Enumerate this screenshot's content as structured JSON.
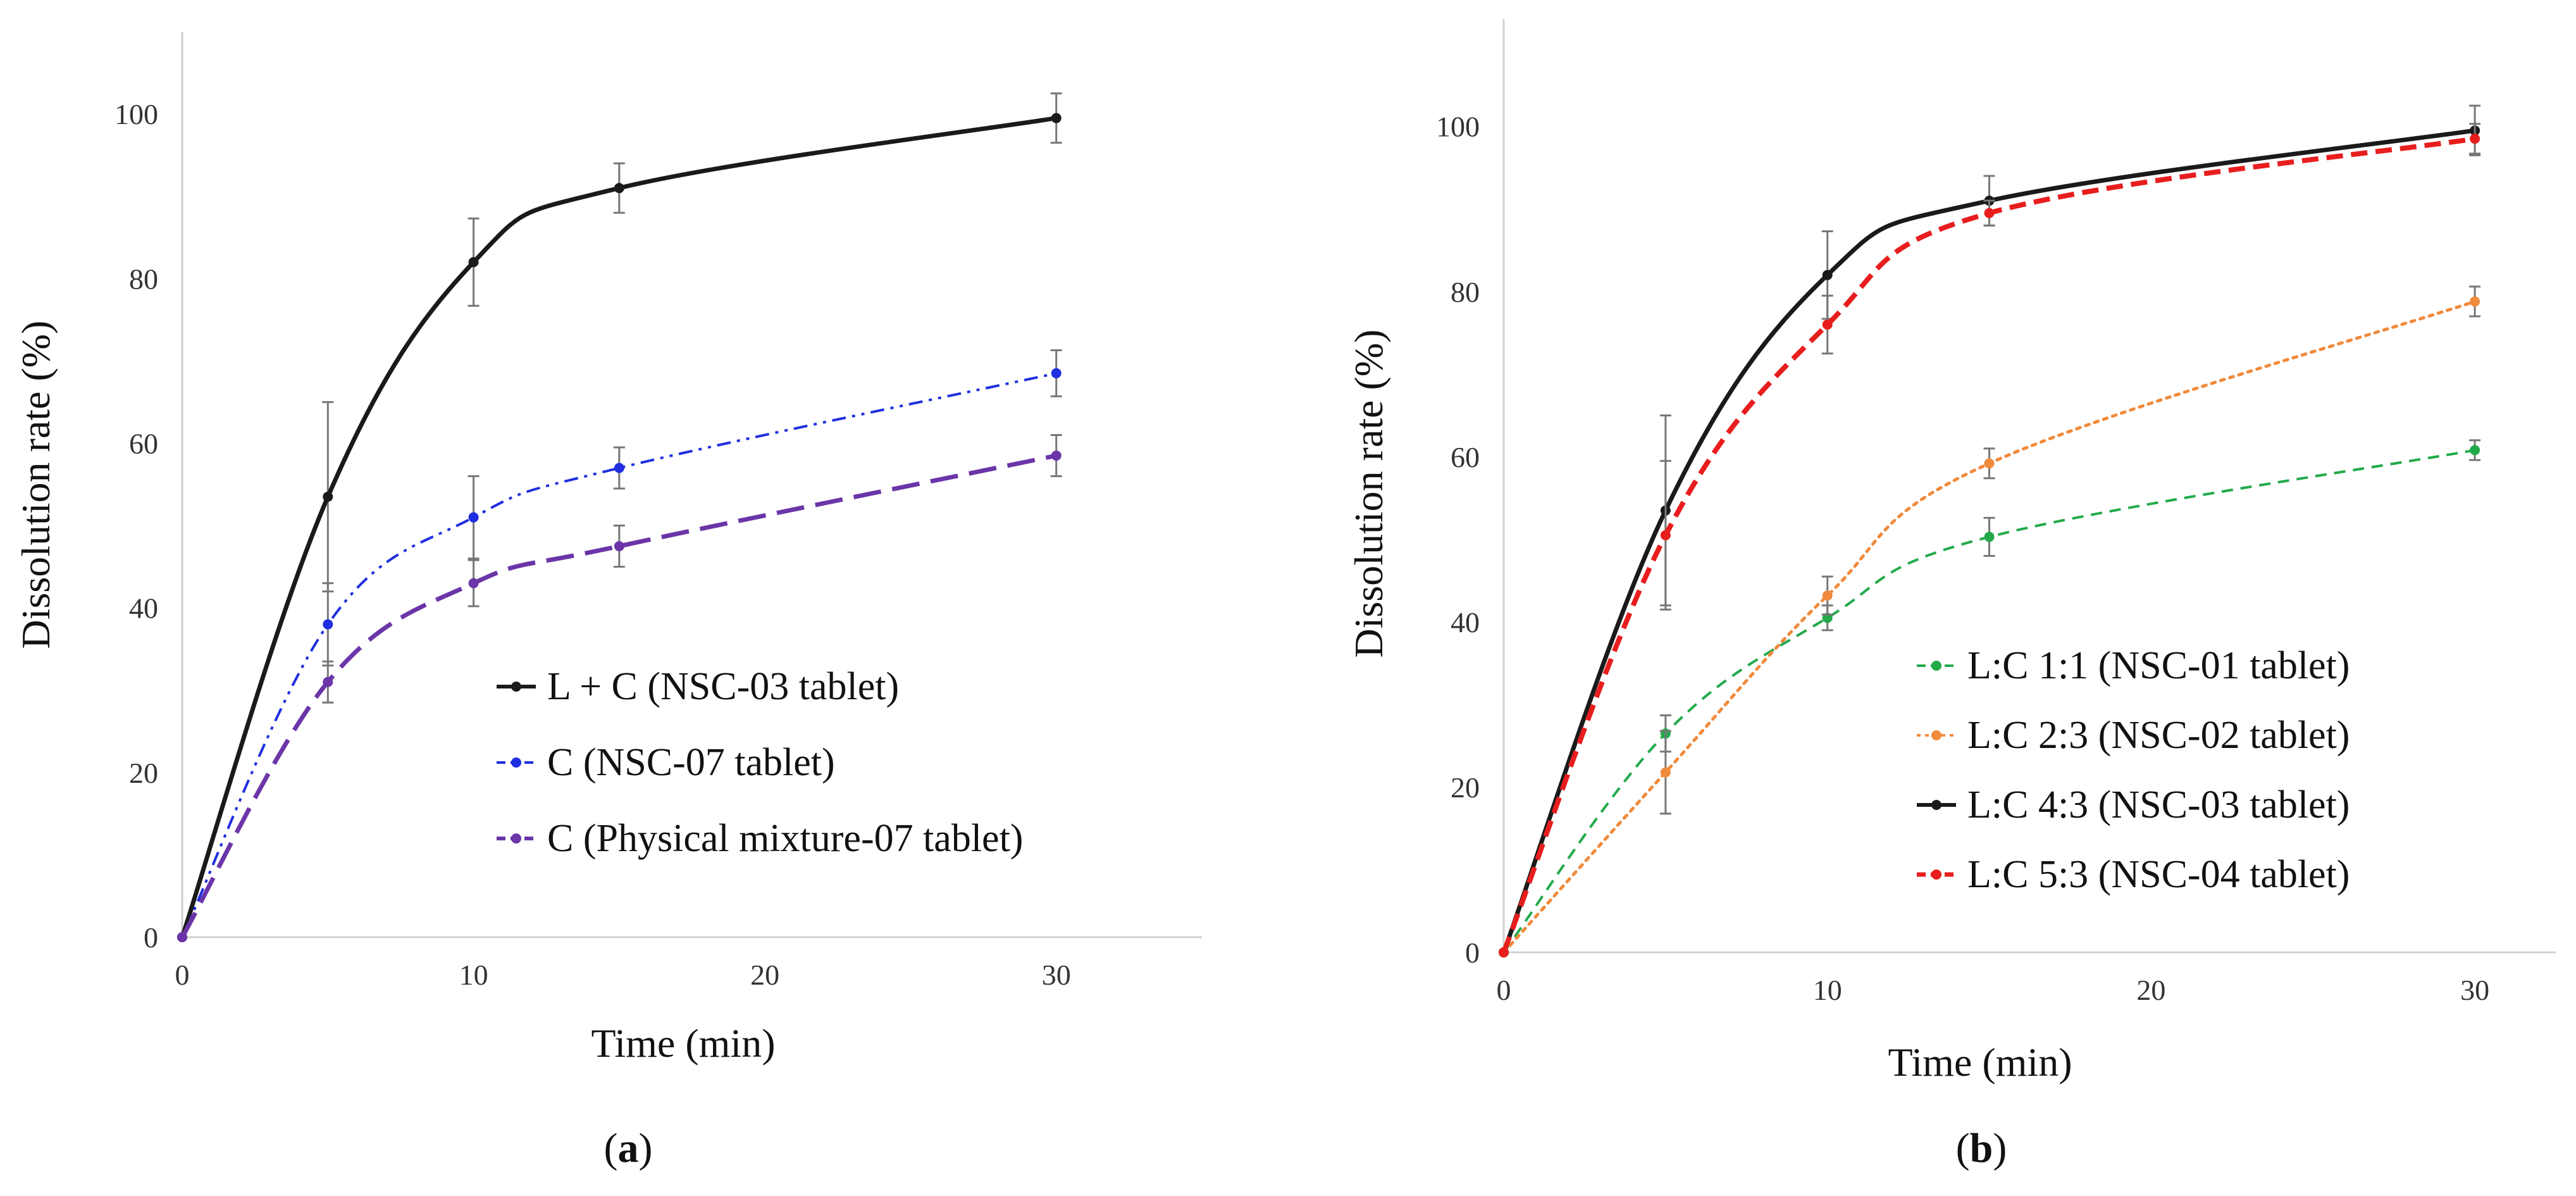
{
  "chart_data": [
    {
      "type": "line",
      "panel_label": "a",
      "xlabel": "Time (min)",
      "ylabel": "Dissolution rate (%)",
      "xlim": [
        0,
        35
      ],
      "ylim": [
        0,
        110
      ],
      "xticks": [
        0,
        10,
        20,
        30
      ],
      "yticks": [
        0,
        20,
        40,
        60,
        80,
        100
      ],
      "grid": false,
      "legend_position": "bottom-right",
      "series": [
        {
          "name": "L + C (NSC-03 tablet)",
          "color": "#1a1a1a",
          "style": "solid-thick",
          "marker_color": "#1a1a1a",
          "x": [
            0,
            5,
            10,
            15,
            30
          ],
          "y": [
            0,
            53.5,
            82,
            91,
            99.5
          ],
          "err": [
            0,
            11.5,
            5.3,
            3,
            3
          ]
        },
        {
          "name": "C (NSC-07 tablet)",
          "color": "#1f2fe0",
          "style": "dash-dot-dot",
          "marker_color": "#1f2fe0",
          "x": [
            0,
            5,
            10,
            15,
            30
          ],
          "y": [
            0,
            38,
            51,
            57,
            68.5
          ],
          "err": [
            0,
            5,
            5,
            2.5,
            2.8
          ]
        },
        {
          "name": "C (Physical mixture-07 tablet)",
          "color": "#6b35a8",
          "style": "long-dash",
          "marker_color": "#6b35a8",
          "x": [
            0,
            5,
            10,
            15,
            30
          ],
          "y": [
            0,
            31,
            43,
            47.5,
            58.5
          ],
          "err": [
            0,
            2.5,
            2.8,
            2.5,
            2.5
          ]
        }
      ]
    },
    {
      "type": "line",
      "panel_label": "b",
      "xlabel": "Time (min)",
      "ylabel": "Dissolution rate (%)",
      "xlim": [
        0,
        32.5
      ],
      "ylim": [
        0,
        113
      ],
      "xticks": [
        0,
        10,
        20,
        30
      ],
      "yticks": [
        0,
        20,
        40,
        60,
        80,
        100
      ],
      "grid": false,
      "legend_position": "bottom-right",
      "series": [
        {
          "name": "L:C 1:1 (NSC-01 tablet)",
          "color": "#22aa4a",
          "style": "dashed",
          "marker_color": "#22aa4a",
          "x": [
            0,
            5,
            10,
            15,
            30
          ],
          "y": [
            0,
            26.5,
            40.5,
            50.3,
            60.8
          ],
          "err": [
            0,
            2.2,
            1.5,
            2.3,
            1.2
          ]
        },
        {
          "name": "L:C 2:3 (NSC-02 tablet)",
          "color": "#f08a3c",
          "style": "dotted",
          "marker_color": "#f08a3c",
          "x": [
            0,
            5,
            10,
            15,
            30
          ],
          "y": [
            0,
            21.8,
            43.2,
            59.2,
            78.8
          ],
          "err": [
            0,
            5,
            2.3,
            1.8,
            1.8
          ]
        },
        {
          "name": "L:C 4:3 (NSC-03 tablet)",
          "color": "#1a1a1a",
          "style": "solid-thick",
          "marker_color": "#1a1a1a",
          "x": [
            0,
            5,
            10,
            15,
            30
          ],
          "y": [
            0,
            53.5,
            82,
            91,
            99.5
          ],
          "err": [
            0,
            11.5,
            5.3,
            3,
            3
          ]
        },
        {
          "name": "L:C 5:3 (NSC-04 tablet)",
          "color": "#e81e1e",
          "style": "dashed-thick",
          "marker_color": "#e81e1e",
          "x": [
            0,
            5,
            10,
            15,
            30
          ],
          "y": [
            0,
            50.5,
            76,
            89.5,
            98.5
          ],
          "err": [
            0,
            9,
            3.5,
            1.5,
            1.8
          ]
        }
      ]
    }
  ],
  "captions": {
    "a": {
      "open": "(",
      "label": "a",
      "close": ")"
    },
    "b": {
      "open": "(",
      "label": "b",
      "close": ")"
    }
  }
}
